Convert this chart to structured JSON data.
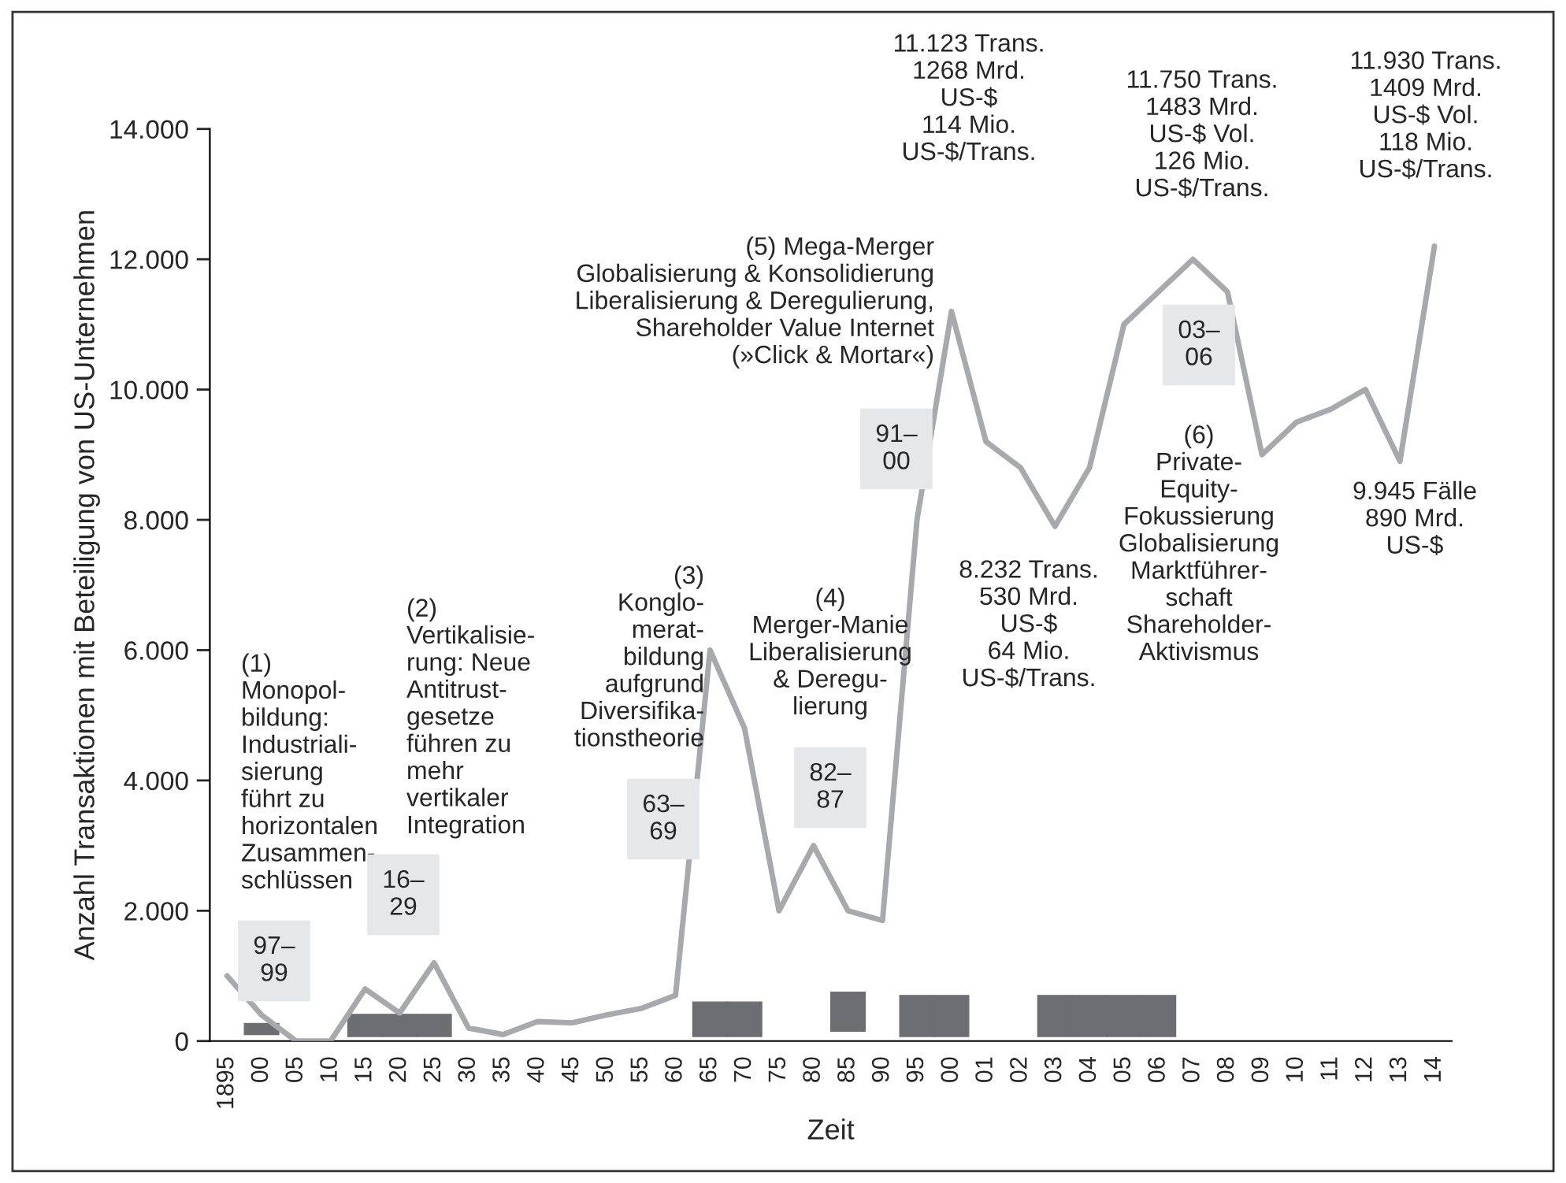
{
  "chart_data": {
    "type": "line",
    "xlabel": "Zeit",
    "ylabel": "Anzahl Transaktionen mit Beteiligung von US-Unternehmen",
    "categories": [
      "1895",
      "00",
      "05",
      "10",
      "15",
      "20",
      "25",
      "30",
      "35",
      "40",
      "45",
      "50",
      "55",
      "60",
      "65",
      "70",
      "75",
      "80",
      "85",
      "90",
      "95",
      "00",
      "01",
      "02",
      "03",
      "04",
      "05",
      "06",
      "07",
      "08",
      "09",
      "10",
      "11",
      "12",
      "13",
      "14"
    ],
    "series": [
      {
        "type": "bar",
        "color": "#6d6e71",
        "values": [
          null,
          170,
          null,
          null,
          340,
          340,
          340,
          null,
          null,
          null,
          null,
          null,
          null,
          null,
          530,
          530,
          null,
          null,
          600,
          null,
          630,
          630,
          null,
          null,
          630,
          630,
          630,
          630,
          null,
          null,
          null,
          null,
          null,
          null,
          null,
          null
        ],
        "base": [
          null,
          100,
          null,
          null,
          70,
          70,
          70,
          null,
          null,
          null,
          null,
          null,
          null,
          null,
          70,
          70,
          null,
          null,
          150,
          null,
          70,
          70,
          null,
          null,
          70,
          70,
          70,
          70,
          null,
          null,
          null,
          null,
          null,
          null,
          null,
          null
        ]
      },
      {
        "color": "#a7a9ac",
        "values": [
          1000,
          400,
          0,
          0,
          800,
          430,
          1200,
          200,
          100,
          300,
          280,
          400,
          500,
          700,
          6000,
          4800,
          2000,
          3000,
          2000,
          1850,
          8000,
          11200,
          9200,
          8800,
          7900,
          8800,
          11000,
          11500,
          12000,
          11500,
          9000,
          9500,
          9700,
          10000,
          8900,
          12200
        ]
      }
    ],
    "ylim": [
      0,
      14000
    ],
    "yticks": [
      0,
      {
        "value": 2000,
        "label": "2.000"
      },
      {
        "value": 4000,
        "label": "4.000"
      },
      {
        "value": 6000,
        "label": "6.000"
      },
      {
        "value": 8000,
        "label": "8.000"
      },
      {
        "value": 10000,
        "label": "10.000"
      },
      {
        "value": 12000,
        "label": "12.000"
      },
      {
        "value": 14000,
        "label": "14.000"
      }
    ],
    "annotations": [
      "97–\n99",
      "(1)\nMonopol-\nbildung:\nIndustriali-\nsierung\nführt zu\nhorizontalen\nZusammen-\nschlüssen",
      "16–\n29",
      "(2)\nVertikalisie-\nrung: Neue\nAntitrust-\ngesetze\nführen zu\nmehr\nvertikaler\nIntegration",
      "63–\n69",
      "(3)\nKonglo-\nmerat-\nbildung\naufgrund\nDiversifika-\ntionstheorie",
      "82–\n87",
      "(4)\nMerger-Manie\nLiberalisierung\n& Deregu-\nlierung",
      "91–\n00",
      "(5) Mega-Merger\nGlobalisierung & Konsolidierung\nLiberalisierung & Deregulierung,\nShareholder Value Internet\n(»Click & Mortar«)",
      "11.123 Trans.\n1268 Mrd.\nUS-$\n114 Mio.\nUS-$/Trans.",
      "8.232 Trans.\n530 Mrd.\nUS-$\n64 Mio.\nUS-$/Trans.",
      "03–\n06",
      "(6)\nPrivate-\nEquity-\nFokussierung\nGlobalisierung\nMarktführer-\nschaft\nShareholder-\nAktivismus",
      "11.750 Trans.\n1483 Mrd.\nUS-$ Vol.\n126 Mio.\nUS-$/Trans.",
      "9.945 Fälle\n890 Mrd.\nUS-$",
      "11.930 Trans.\n1409 Mrd.\nUS-$ Vol.\n118 Mio.\nUS-$/Trans."
    ]
  }
}
